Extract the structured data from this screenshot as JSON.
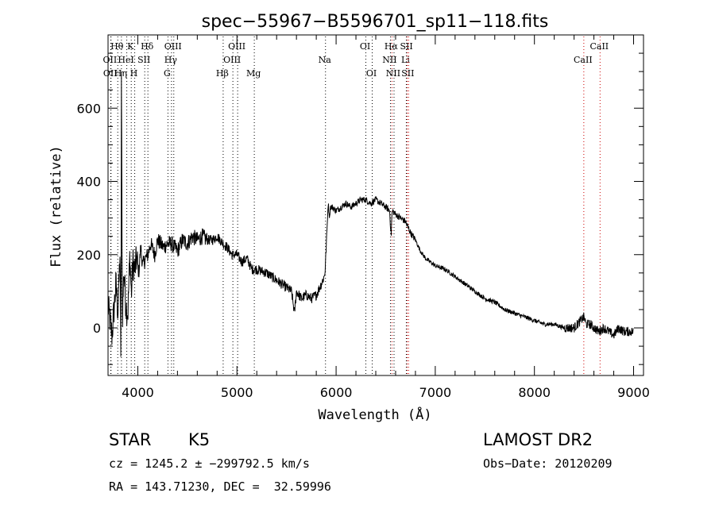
{
  "chart_data": {
    "type": "line",
    "title": "spec−55967−B5596701_sp11−118.fits",
    "xlabel": "Wavelength (Å)",
    "ylabel": "Flux (relative)",
    "xlim": [
      3700,
      9100
    ],
    "ylim": [
      -130,
      800
    ],
    "x_ticks": [
      4000,
      5000,
      6000,
      7000,
      8000,
      9000
    ],
    "y_ticks": [
      0,
      200,
      400,
      600
    ],
    "grid": false,
    "series": [
      {
        "x": [
          3700,
          3740,
          3780,
          3800,
          3820,
          3830,
          3835,
          3845,
          3860,
          3880,
          3900,
          3920,
          3935,
          3950,
          3970,
          3990,
          4010,
          4030,
          4050,
          4080,
          4102,
          4130,
          4170,
          4200,
          4260,
          4300,
          4340,
          4400,
          4450,
          4500,
          4550,
          4600,
          4650,
          4700,
          4750,
          4800,
          4861,
          4900,
          4950,
          5000,
          5050,
          5100,
          5150,
          5200,
          5300,
          5400,
          5500,
          5550,
          5580,
          5600,
          5650,
          5700,
          5750,
          5800,
          5850,
          5880,
          5890,
          5920,
          5935,
          5940,
          5960,
          6000,
          6050,
          6100,
          6150,
          6200,
          6250,
          6300,
          6350,
          6400,
          6450,
          6500,
          6540,
          6555,
          6563,
          6570,
          6600,
          6650,
          6700,
          6750,
          6800,
          6850,
          6900,
          7000,
          7100,
          7200,
          7300,
          7400,
          7500,
          7600,
          7700,
          7800,
          7900,
          8000,
          8100,
          8200,
          8300,
          8400,
          8500,
          8520,
          8560,
          8600,
          8650,
          8700,
          8750,
          8800,
          8850,
          8900,
          8950,
          9000
        ],
        "values": [
          60,
          -20,
          120,
          40,
          200,
          -110,
          700,
          20,
          160,
          60,
          40,
          200,
          90,
          180,
          160,
          190,
          150,
          220,
          170,
          190,
          200,
          230,
          200,
          240,
          220,
          230,
          230,
          210,
          240,
          230,
          250,
          240,
          250,
          240,
          240,
          250,
          230,
          220,
          200,
          200,
          180,
          190,
          160,
          160,
          150,
          130,
          110,
          100,
          40,
          100,
          80,
          90,
          80,
          90,
          120,
          140,
          160,
          340,
          300,
          330,
          330,
          320,
          330,
          340,
          330,
          340,
          350,
          350,
          340,
          350,
          340,
          330,
          320,
          250,
          310,
          320,
          310,
          300,
          290,
          260,
          240,
          210,
          190,
          170,
          160,
          140,
          120,
          100,
          80,
          70,
          50,
          40,
          30,
          20,
          10,
          10,
          0,
          0,
          30,
          10,
          10,
          0,
          -10,
          0,
          -10,
          -20,
          0,
          -10,
          -10,
          -10
        ]
      }
    ],
    "lines": [
      {
        "name": "Hθ",
        "wl": 3798,
        "row": 0,
        "color": "#000000"
      },
      {
        "name": "OII",
        "wl": 3727,
        "row": 1,
        "color": "#000000"
      },
      {
        "name": "OII",
        "wl": 3730,
        "row": 2,
        "color": "#000000"
      },
      {
        "name": "K",
        "wl": 3934,
        "row": 0,
        "color": "#000000"
      },
      {
        "name": "HeI",
        "wl": 3889,
        "row": 1,
        "color": "#000000"
      },
      {
        "name": "Hη",
        "wl": 3835,
        "row": 2,
        "color": "#000000"
      },
      {
        "name": "SII",
        "wl": 4070,
        "row": 1,
        "color": "#000000"
      },
      {
        "name": "H",
        "wl": 3969,
        "row": 2,
        "color": "#000000"
      },
      {
        "name": "Hδ",
        "wl": 4102,
        "row": 0,
        "color": "#000000"
      },
      {
        "name": "OIII",
        "wl": 4363,
        "row": 0,
        "color": "#000000"
      },
      {
        "name": "Hγ",
        "wl": 4340,
        "row": 1,
        "color": "#000000"
      },
      {
        "name": "G",
        "wl": 4304,
        "row": 2,
        "color": "#000000"
      },
      {
        "name": "OIII",
        "wl": 5007,
        "row": 0,
        "color": "#000000"
      },
      {
        "name": "OIII",
        "wl": 4959,
        "row": 1,
        "color": "#000000"
      },
      {
        "name": "Hβ",
        "wl": 4861,
        "row": 2,
        "color": "#000000"
      },
      {
        "name": "Mg",
        "wl": 5175,
        "row": 2,
        "color": "#000000"
      },
      {
        "name": "Na",
        "wl": 5893,
        "row": 1,
        "color": "#000000"
      },
      {
        "name": "OI",
        "wl": 6300,
        "row": 0,
        "color": "#000000"
      },
      {
        "name": "OI",
        "wl": 6364,
        "row": 2,
        "color": "#000000"
      },
      {
        "name": "Hα",
        "wl": 6563,
        "row": 0,
        "color": "#cc0000"
      },
      {
        "name": "NII",
        "wl": 6548,
        "row": 1,
        "color": "#000000"
      },
      {
        "name": "NII",
        "wl": 6584,
        "row": 2,
        "color": "#000000"
      },
      {
        "name": "SII",
        "wl": 6717,
        "row": 0,
        "color": "#cc0000"
      },
      {
        "name": "Li",
        "wl": 6708,
        "row": 1,
        "color": "#000000"
      },
      {
        "name": "SII",
        "wl": 6731,
        "row": 2,
        "color": "#cc0000"
      },
      {
        "name": "CaII",
        "wl": 8662,
        "row": 0,
        "color": "#cc0000"
      },
      {
        "name": "CaII",
        "wl": 8498,
        "row": 1,
        "color": "#cc0000"
      }
    ]
  },
  "info": {
    "object_class": "STAR",
    "subclass": "K5",
    "survey": "LAMOST DR2",
    "cz": "cz = 1245.2 ± −299792.5 km/s",
    "obs_date": "Obs−Date: 20120209",
    "coords": "RA = 143.71230, DEC =  32.59996"
  }
}
